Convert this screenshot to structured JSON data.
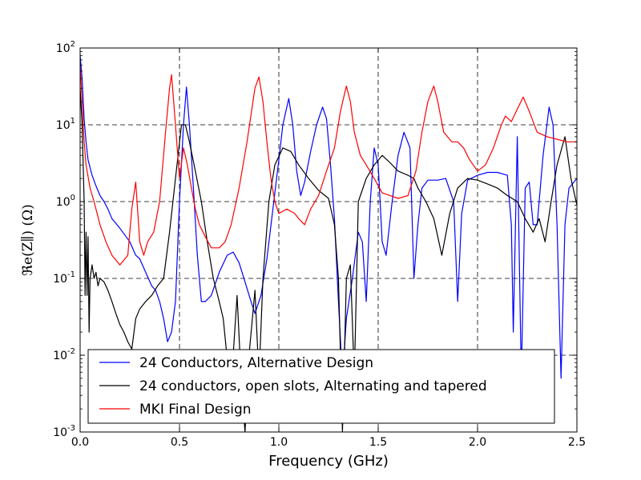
{
  "chart_data": {
    "type": "line",
    "title": "",
    "xlabel": "Frequency (GHz)",
    "ylabel": "ℜe(Z∥) (Ω)",
    "xlim": [
      0.0,
      2.5
    ],
    "ylim": [
      0.001,
      100
    ],
    "yscale": "log",
    "grid": true,
    "legend_position": "bottom-left",
    "x_ticks": [
      {
        "value": 0.0,
        "label": "0.0"
      },
      {
        "value": 0.5,
        "label": "0.5"
      },
      {
        "value": 1.0,
        "label": "1.0"
      },
      {
        "value": 1.5,
        "label": "1.5"
      },
      {
        "value": 2.0,
        "label": "2.0"
      },
      {
        "value": 2.5,
        "label": "2.5"
      }
    ],
    "y_ticks": [
      {
        "value": 0.001,
        "base": "10",
        "exp": "-3"
      },
      {
        "value": 0.01,
        "base": "10",
        "exp": "-2"
      },
      {
        "value": 0.1,
        "base": "10",
        "exp": "-1"
      },
      {
        "value": 1,
        "base": "10",
        "exp": "0"
      },
      {
        "value": 10,
        "base": "10",
        "exp": "1"
      },
      {
        "value": 100,
        "base": "10",
        "exp": "2"
      }
    ],
    "series": [
      {
        "name": "24 Conductors, Alternative Design",
        "color": "#0000ff",
        "points": [
          [
            0.0,
            80
          ],
          [
            0.01,
            40
          ],
          [
            0.02,
            12
          ],
          [
            0.03,
            6
          ],
          [
            0.04,
            3.5
          ],
          [
            0.06,
            2.2
          ],
          [
            0.08,
            1.6
          ],
          [
            0.1,
            1.2
          ],
          [
            0.12,
            1.0
          ],
          [
            0.14,
            0.8
          ],
          [
            0.16,
            0.6
          ],
          [
            0.2,
            0.45
          ],
          [
            0.25,
            0.3
          ],
          [
            0.28,
            0.2
          ],
          [
            0.3,
            0.18
          ],
          [
            0.33,
            0.12
          ],
          [
            0.36,
            0.08
          ],
          [
            0.38,
            0.07
          ],
          [
            0.4,
            0.05
          ],
          [
            0.42,
            0.03
          ],
          [
            0.44,
            0.015
          ],
          [
            0.46,
            0.02
          ],
          [
            0.48,
            0.05
          ],
          [
            0.5,
            1.0
          ],
          [
            0.52,
            10
          ],
          [
            0.535,
            31
          ],
          [
            0.55,
            10
          ],
          [
            0.57,
            1.5
          ],
          [
            0.59,
            0.2
          ],
          [
            0.61,
            0.05
          ],
          [
            0.63,
            0.05
          ],
          [
            0.66,
            0.06
          ],
          [
            0.7,
            0.12
          ],
          [
            0.74,
            0.2
          ],
          [
            0.77,
            0.22
          ],
          [
            0.8,
            0.16
          ],
          [
            0.83,
            0.09
          ],
          [
            0.86,
            0.05
          ],
          [
            0.88,
            0.035
          ],
          [
            0.91,
            0.06
          ],
          [
            0.94,
            0.18
          ],
          [
            0.97,
            0.8
          ],
          [
            1.0,
            3.5
          ],
          [
            1.02,
            10
          ],
          [
            1.05,
            22
          ],
          [
            1.07,
            10
          ],
          [
            1.09,
            2.5
          ],
          [
            1.11,
            1.2
          ],
          [
            1.13,
            1.8
          ],
          [
            1.16,
            4.5
          ],
          [
            1.19,
            10
          ],
          [
            1.22,
            17
          ],
          [
            1.24,
            12
          ],
          [
            1.26,
            3.0
          ],
          [
            1.28,
            0.6
          ],
          [
            1.3,
            0.05
          ],
          [
            1.32,
            0.005
          ],
          [
            1.34,
            0.03
          ],
          [
            1.37,
            0.1
          ],
          [
            1.4,
            0.4
          ],
          [
            1.42,
            0.3
          ],
          [
            1.44,
            0.05
          ],
          [
            1.46,
            1.0
          ],
          [
            1.48,
            5.0
          ],
          [
            1.5,
            3.0
          ],
          [
            1.52,
            0.3
          ],
          [
            1.54,
            0.2
          ],
          [
            1.57,
            1.0
          ],
          [
            1.6,
            4.0
          ],
          [
            1.63,
            8.0
          ],
          [
            1.66,
            5.0
          ],
          [
            1.68,
            0.1
          ],
          [
            1.7,
            0.5
          ],
          [
            1.72,
            1.5
          ],
          [
            1.75,
            1.9
          ],
          [
            1.8,
            1.9
          ],
          [
            1.84,
            2.0
          ],
          [
            1.88,
            1.0
          ],
          [
            1.9,
            0.05
          ],
          [
            1.92,
            0.7
          ],
          [
            1.95,
            1.9
          ],
          [
            2.0,
            2.2
          ],
          [
            2.05,
            2.4
          ],
          [
            2.1,
            2.4
          ],
          [
            2.15,
            2.2
          ],
          [
            2.17,
            0.5
          ],
          [
            2.18,
            0.02
          ],
          [
            2.2,
            7.0
          ],
          [
            2.22,
            0.005
          ],
          [
            2.24,
            1.5
          ],
          [
            2.26,
            1.8
          ],
          [
            2.28,
            0.5
          ],
          [
            2.3,
            0.5
          ],
          [
            2.33,
            4.0
          ],
          [
            2.36,
            17
          ],
          [
            2.38,
            10
          ],
          [
            2.4,
            0.5
          ],
          [
            2.42,
            0.005
          ],
          [
            2.44,
            0.5
          ],
          [
            2.46,
            1.5
          ],
          [
            2.5,
            2.0
          ]
        ]
      },
      {
        "name": "24 conductors, open slots, Alternating and tapered",
        "color": "#000000",
        "points": [
          [
            0.0,
            30
          ],
          [
            0.01,
            10
          ],
          [
            0.02,
            1.0
          ],
          [
            0.025,
            0.06
          ],
          [
            0.03,
            0.4
          ],
          [
            0.035,
            0.06
          ],
          [
            0.04,
            0.35
          ],
          [
            0.045,
            0.02
          ],
          [
            0.05,
            0.1
          ],
          [
            0.06,
            0.15
          ],
          [
            0.07,
            0.1
          ],
          [
            0.08,
            0.12
          ],
          [
            0.09,
            0.08
          ],
          [
            0.1,
            0.1
          ],
          [
            0.12,
            0.09
          ],
          [
            0.14,
            0.07
          ],
          [
            0.16,
            0.05
          ],
          [
            0.18,
            0.035
          ],
          [
            0.2,
            0.025
          ],
          [
            0.22,
            0.02
          ],
          [
            0.24,
            0.015
          ],
          [
            0.26,
            0.012
          ],
          [
            0.28,
            0.03
          ],
          [
            0.3,
            0.04
          ],
          [
            0.33,
            0.05
          ],
          [
            0.36,
            0.06
          ],
          [
            0.39,
            0.08
          ],
          [
            0.42,
            0.1
          ],
          [
            0.45,
            0.4
          ],
          [
            0.48,
            2.0
          ],
          [
            0.51,
            10
          ],
          [
            0.53,
            10
          ],
          [
            0.55,
            6.0
          ],
          [
            0.58,
            2.5
          ],
          [
            0.61,
            1.0
          ],
          [
            0.64,
            0.3
          ],
          [
            0.67,
            0.1
          ],
          [
            0.7,
            0.05
          ],
          [
            0.72,
            0.03
          ],
          [
            0.75,
            0.005
          ],
          [
            0.77,
            0.01
          ],
          [
            0.79,
            0.06
          ],
          [
            0.81,
            0.005
          ],
          [
            0.83,
            0.001
          ],
          [
            0.85,
            0.01
          ],
          [
            0.88,
            0.07
          ],
          [
            0.9,
            0.005
          ],
          [
            0.92,
            0.1
          ],
          [
            0.95,
            1.0
          ],
          [
            0.98,
            3.0
          ],
          [
            1.02,
            5.0
          ],
          [
            1.06,
            4.5
          ],
          [
            1.1,
            3.0
          ],
          [
            1.15,
            2.0
          ],
          [
            1.2,
            1.4
          ],
          [
            1.25,
            1.1
          ],
          [
            1.28,
            0.5
          ],
          [
            1.3,
            0.1
          ],
          [
            1.32,
            0.001
          ],
          [
            1.34,
            0.1
          ],
          [
            1.36,
            0.15
          ],
          [
            1.38,
            0.005
          ],
          [
            1.4,
            1.0
          ],
          [
            1.44,
            2.0
          ],
          [
            1.48,
            3.0
          ],
          [
            1.52,
            4.0
          ],
          [
            1.56,
            3.2
          ],
          [
            1.6,
            2.5
          ],
          [
            1.65,
            2.2
          ],
          [
            1.68,
            2.0
          ],
          [
            1.7,
            1.5
          ],
          [
            1.74,
            1.0
          ],
          [
            1.78,
            0.6
          ],
          [
            1.82,
            0.2
          ],
          [
            1.86,
            0.7
          ],
          [
            1.9,
            1.5
          ],
          [
            1.95,
            2.0
          ],
          [
            2.0,
            1.9
          ],
          [
            2.05,
            1.7
          ],
          [
            2.1,
            1.5
          ],
          [
            2.15,
            1.2
          ],
          [
            2.2,
            1.0
          ],
          [
            2.24,
            0.6
          ],
          [
            2.28,
            0.4
          ],
          [
            2.31,
            0.6
          ],
          [
            2.34,
            0.3
          ],
          [
            2.37,
            1.0
          ],
          [
            2.4,
            3.0
          ],
          [
            2.44,
            7.0
          ],
          [
            2.47,
            2.0
          ],
          [
            2.5,
            0.9
          ]
        ]
      },
      {
        "name": "MKI Final Design",
        "color": "#ff0000",
        "points": [
          [
            0.0,
            60
          ],
          [
            0.01,
            20
          ],
          [
            0.02,
            6
          ],
          [
            0.03,
            3.0
          ],
          [
            0.05,
            1.5
          ],
          [
            0.07,
            1.0
          ],
          [
            0.1,
            0.5
          ],
          [
            0.13,
            0.3
          ],
          [
            0.16,
            0.2
          ],
          [
            0.2,
            0.15
          ],
          [
            0.24,
            0.2
          ],
          [
            0.26,
            0.8
          ],
          [
            0.28,
            1.8
          ],
          [
            0.3,
            0.3
          ],
          [
            0.32,
            0.2
          ],
          [
            0.34,
            0.3
          ],
          [
            0.37,
            0.4
          ],
          [
            0.4,
            1.0
          ],
          [
            0.43,
            8.0
          ],
          [
            0.45,
            30
          ],
          [
            0.46,
            45
          ],
          [
            0.48,
            10
          ],
          [
            0.5,
            2.0
          ],
          [
            0.52,
            5.0
          ],
          [
            0.54,
            3.0
          ],
          [
            0.56,
            1.5
          ],
          [
            0.58,
            0.8
          ],
          [
            0.6,
            0.5
          ],
          [
            0.63,
            0.35
          ],
          [
            0.66,
            0.25
          ],
          [
            0.7,
            0.25
          ],
          [
            0.73,
            0.3
          ],
          [
            0.76,
            0.5
          ],
          [
            0.8,
            1.5
          ],
          [
            0.84,
            6.0
          ],
          [
            0.88,
            30
          ],
          [
            0.9,
            42
          ],
          [
            0.92,
            20
          ],
          [
            0.94,
            6.0
          ],
          [
            0.96,
            2.0
          ],
          [
            0.98,
            1.0
          ],
          [
            1.0,
            0.7
          ],
          [
            1.04,
            0.8
          ],
          [
            1.08,
            0.7
          ],
          [
            1.1,
            0.6
          ],
          [
            1.13,
            0.5
          ],
          [
            1.16,
            0.8
          ],
          [
            1.2,
            1.2
          ],
          [
            1.24,
            2.5
          ],
          [
            1.28,
            5.0
          ],
          [
            1.31,
            15
          ],
          [
            1.34,
            32
          ],
          [
            1.36,
            20
          ],
          [
            1.38,
            8.0
          ],
          [
            1.41,
            4.0
          ],
          [
            1.44,
            3.0
          ],
          [
            1.48,
            2.0
          ],
          [
            1.52,
            1.3
          ],
          [
            1.56,
            1.2
          ],
          [
            1.6,
            1.1
          ],
          [
            1.65,
            1.2
          ],
          [
            1.69,
            2.5
          ],
          [
            1.72,
            8.0
          ],
          [
            1.75,
            20
          ],
          [
            1.78,
            32
          ],
          [
            1.8,
            20
          ],
          [
            1.83,
            8.0
          ],
          [
            1.87,
            6.0
          ],
          [
            1.9,
            6.0
          ],
          [
            1.93,
            5.0
          ],
          [
            1.96,
            3.5
          ],
          [
            2.0,
            2.5
          ],
          [
            2.04,
            3.0
          ],
          [
            2.08,
            5.0
          ],
          [
            2.12,
            10
          ],
          [
            2.14,
            13
          ],
          [
            2.17,
            11
          ],
          [
            2.2,
            16
          ],
          [
            2.23,
            23
          ],
          [
            2.26,
            15
          ],
          [
            2.3,
            8.0
          ],
          [
            2.35,
            7.0
          ],
          [
            2.4,
            6.5
          ],
          [
            2.45,
            6.0
          ],
          [
            2.5,
            6.0
          ]
        ]
      }
    ]
  }
}
